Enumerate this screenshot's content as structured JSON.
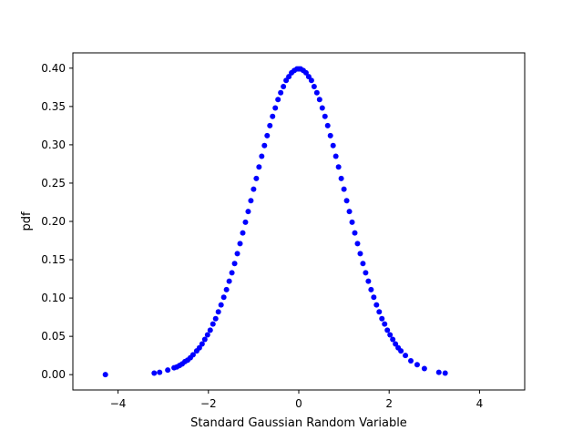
{
  "chart_data": {
    "type": "scatter",
    "title": "",
    "xlabel": "Standard Gaussian Random Variable",
    "ylabel": "pdf",
    "xlim": [
      -5,
      5
    ],
    "ylim": [
      -0.02,
      0.42
    ],
    "xticks": [
      -4,
      -2,
      0,
      2,
      4
    ],
    "xtick_labels": [
      "−4",
      "−2",
      "0",
      "2",
      "4"
    ],
    "yticks": [
      0.0,
      0.05,
      0.1,
      0.15,
      0.2,
      0.25,
      0.3,
      0.35,
      0.4
    ],
    "ytick_labels": [
      "0.00",
      "0.05",
      "0.10",
      "0.15",
      "0.20",
      "0.25",
      "0.30",
      "0.35",
      "0.40"
    ],
    "grid": false,
    "legend": null,
    "marker_color": "#0000ff",
    "series": [
      {
        "x": [
          -4.28,
          -3.2,
          -3.08,
          -2.9,
          -2.76,
          -2.7,
          -2.64,
          -2.58,
          -2.52,
          -2.46,
          -2.4,
          -2.34,
          -2.26,
          -2.2,
          -2.14,
          -2.08,
          -2.02,
          -1.96,
          -1.9,
          -1.84,
          -1.78,
          -1.72,
          -1.66,
          -1.6,
          -1.54,
          -1.48,
          -1.42,
          -1.36,
          -1.3,
          -1.24,
          -1.18,
          -1.12,
          -1.06,
          -1.0,
          -0.94,
          -0.88,
          -0.82,
          -0.76,
          -0.7,
          -0.64,
          -0.58,
          -0.52,
          -0.46,
          -0.4,
          -0.34,
          -0.28,
          -0.22,
          -0.16,
          -0.1,
          -0.04,
          0.0,
          0.04,
          0.1,
          0.16,
          0.22,
          0.28,
          0.34,
          0.4,
          0.46,
          0.52,
          0.58,
          0.64,
          0.7,
          0.76,
          0.82,
          0.88,
          0.94,
          1.0,
          1.06,
          1.12,
          1.18,
          1.24,
          1.3,
          1.36,
          1.42,
          1.48,
          1.54,
          1.6,
          1.66,
          1.72,
          1.78,
          1.84,
          1.9,
          1.96,
          2.02,
          2.08,
          2.14,
          2.2,
          2.26,
          2.36,
          2.48,
          2.62,
          2.78,
          3.1,
          3.24
        ],
        "y": [
          0.0,
          0.002,
          0.003,
          0.006,
          0.009,
          0.01,
          0.012,
          0.014,
          0.017,
          0.019,
          0.022,
          0.026,
          0.031,
          0.035,
          0.04,
          0.046,
          0.052,
          0.058,
          0.066,
          0.073,
          0.082,
          0.091,
          0.101,
          0.111,
          0.122,
          0.133,
          0.145,
          0.158,
          0.171,
          0.185,
          0.199,
          0.213,
          0.227,
          0.242,
          0.256,
          0.271,
          0.285,
          0.299,
          0.312,
          0.325,
          0.337,
          0.348,
          0.359,
          0.368,
          0.376,
          0.384,
          0.389,
          0.394,
          0.397,
          0.399,
          0.399,
          0.399,
          0.397,
          0.394,
          0.389,
          0.384,
          0.376,
          0.368,
          0.359,
          0.348,
          0.337,
          0.325,
          0.312,
          0.299,
          0.285,
          0.271,
          0.256,
          0.242,
          0.227,
          0.213,
          0.199,
          0.185,
          0.171,
          0.158,
          0.145,
          0.133,
          0.122,
          0.111,
          0.101,
          0.091,
          0.082,
          0.073,
          0.066,
          0.058,
          0.052,
          0.046,
          0.04,
          0.035,
          0.031,
          0.025,
          0.018,
          0.013,
          0.008,
          0.003,
          0.002
        ]
      }
    ]
  }
}
